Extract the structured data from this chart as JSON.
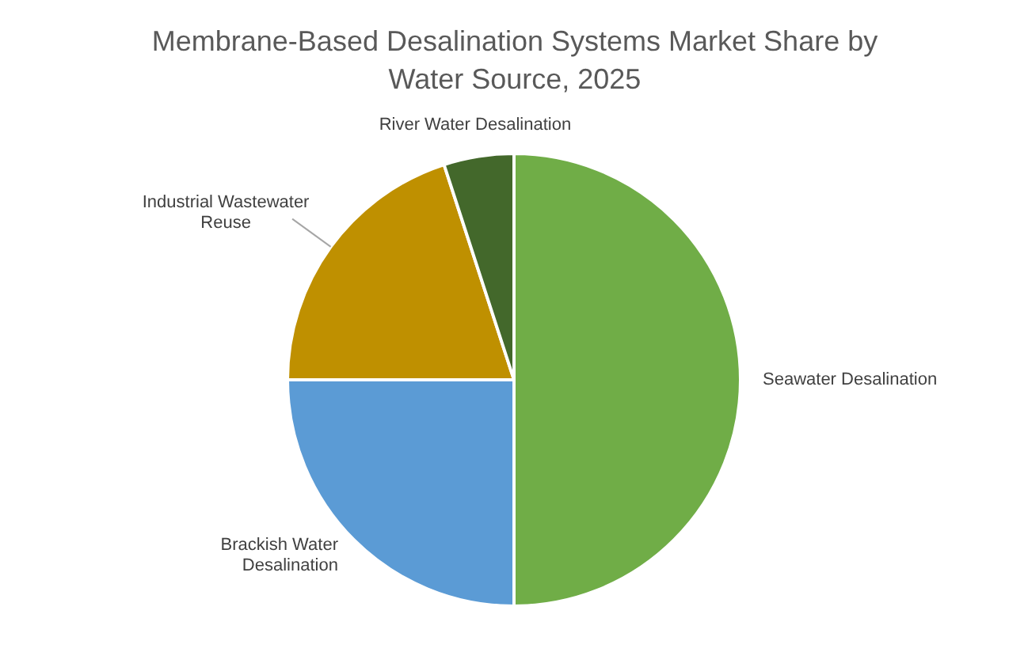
{
  "chart_data": {
    "type": "pie",
    "title": "Membrane-Based Desalination Systems Market Share by Water Source, 2025",
    "categories": [
      "Seawater Desalination",
      "Brackish Water Desalination",
      "Industrial Wastewater Reuse",
      "River Water Desalination"
    ],
    "values": [
      50,
      25,
      20,
      5
    ],
    "colors": [
      "#70ad47",
      "#5b9bd5",
      "#bf9000",
      "#43682b"
    ],
    "legend": false
  }
}
